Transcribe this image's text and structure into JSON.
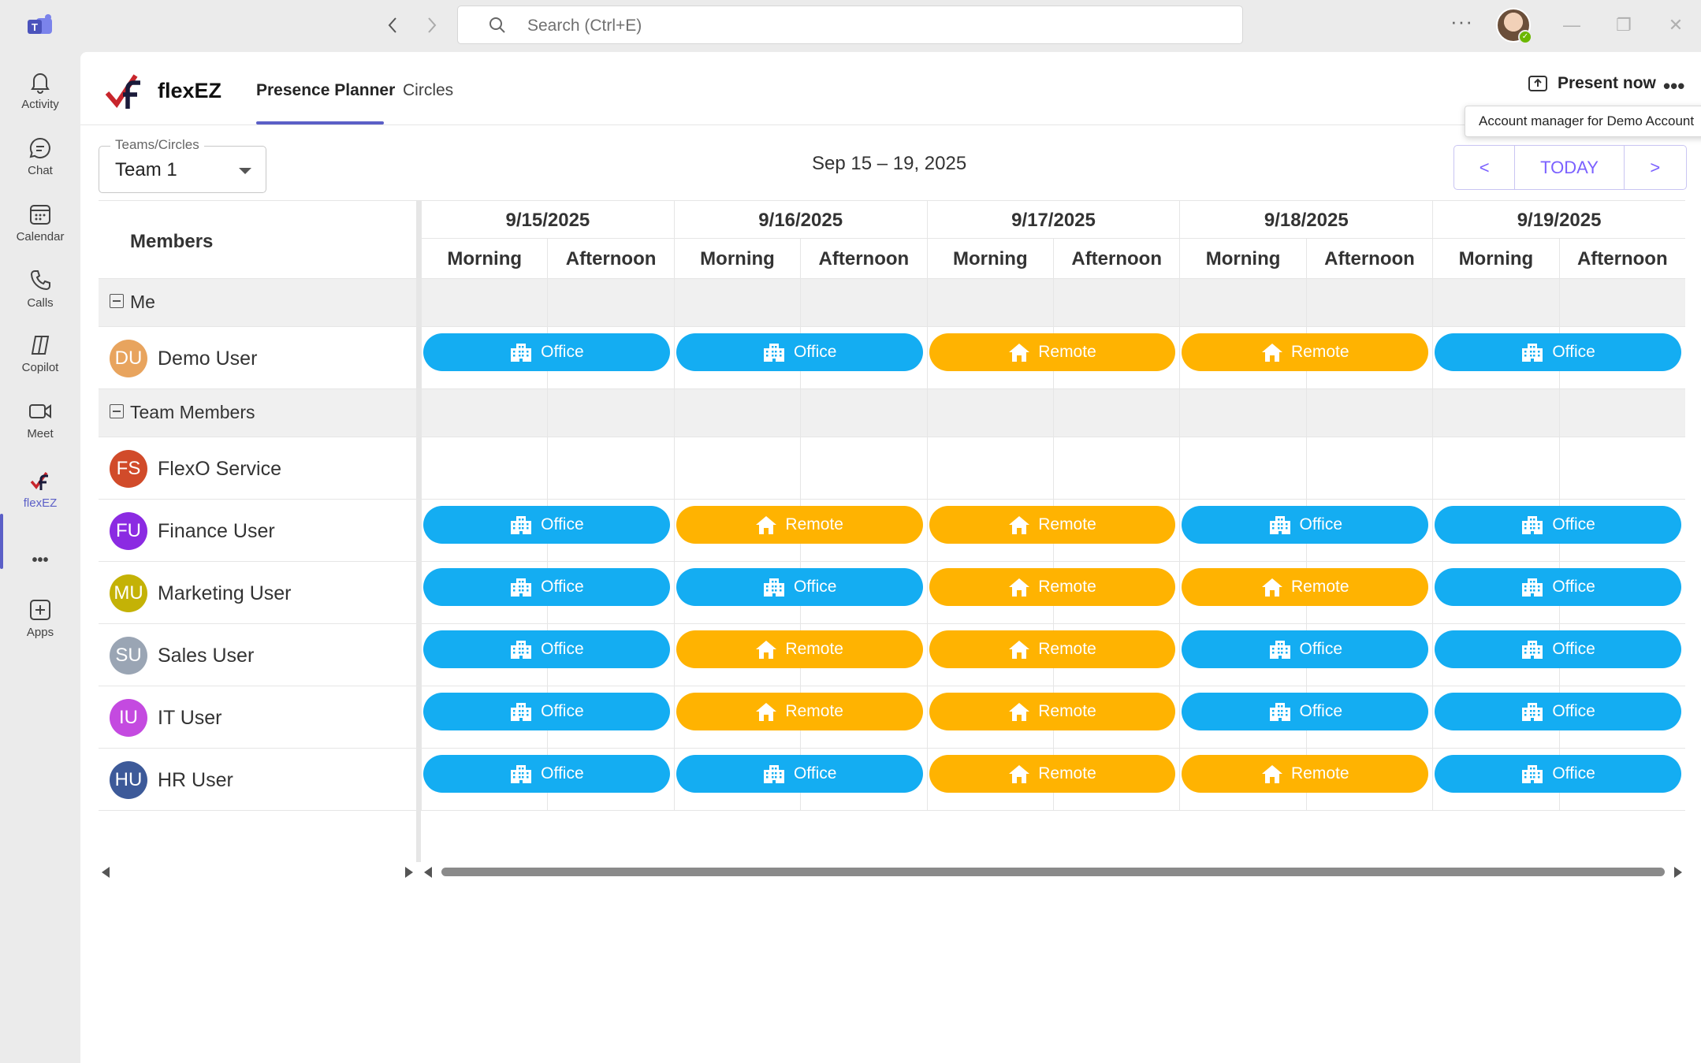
{
  "titlebar": {
    "search_placeholder": "Search (Ctrl+E)",
    "more": "···",
    "minimize": "—",
    "restore": "❐",
    "close": "✕"
  },
  "rail": {
    "items": [
      {
        "label": "Activity",
        "icon": "bell-icon"
      },
      {
        "label": "Chat",
        "icon": "chat-icon"
      },
      {
        "label": "Calendar",
        "icon": "calendar-icon"
      },
      {
        "label": "Calls",
        "icon": "phone-icon"
      },
      {
        "label": "Copilot",
        "icon": "copilot-icon"
      },
      {
        "label": "Meet",
        "icon": "video-icon"
      },
      {
        "label": "flexEZ",
        "icon": "flexez-icon"
      },
      {
        "label": "",
        "icon": "more-icon"
      },
      {
        "label": "Apps",
        "icon": "add-apps-icon"
      }
    ],
    "more_label": "•••",
    "accent": "#5b5fc7"
  },
  "app": {
    "name": "flexEZ",
    "tabs": [
      "Presence Planner",
      "Circles"
    ],
    "present_now": "Present now",
    "more": "•••",
    "tooltip": "Account manager for Demo Account"
  },
  "filter": {
    "legend": "Teams/Circles",
    "value": "Team 1"
  },
  "date_range": "Sep 15 – 19, 2025",
  "nav": {
    "prev": "<",
    "today": "TODAY",
    "next": ">"
  },
  "grid": {
    "members_header": "Members",
    "days": [
      "9/15/2025",
      "9/16/2025",
      "9/17/2025",
      "9/18/2025",
      "9/19/2025"
    ],
    "halves": [
      "Morning",
      "Afternoon"
    ],
    "status_labels": {
      "office": "Office",
      "remote": "Remote"
    },
    "colors": {
      "office": "#14adf2",
      "remote": "#ffb301"
    },
    "rows": [
      {
        "type": "group",
        "label": "Me"
      },
      {
        "type": "member",
        "initials": "DU",
        "name": "Demo User",
        "color": "#e8a45e",
        "statuses": [
          "office",
          "office",
          "remote",
          "remote",
          "office"
        ]
      },
      {
        "type": "group",
        "label": "Team Members"
      },
      {
        "type": "member",
        "initials": "FS",
        "name": "FlexO Service",
        "color": "#d14b2a",
        "statuses": [
          null,
          null,
          null,
          null,
          null
        ]
      },
      {
        "type": "member",
        "initials": "FU",
        "name": "Finance User",
        "color": "#8b2be2",
        "statuses": [
          "office",
          "remote",
          "remote",
          "office",
          "office"
        ]
      },
      {
        "type": "member",
        "initials": "MU",
        "name": "Marketing User",
        "color": "#c4b206",
        "statuses": [
          "office",
          "office",
          "remote",
          "remote",
          "office"
        ]
      },
      {
        "type": "member",
        "initials": "SU",
        "name": "Sales User",
        "color": "#9aa5b4",
        "statuses": [
          "office",
          "remote",
          "remote",
          "office",
          "office"
        ]
      },
      {
        "type": "member",
        "initials": "IU",
        "name": "IT User",
        "color": "#c44ae0",
        "statuses": [
          "office",
          "remote",
          "remote",
          "office",
          "office"
        ]
      },
      {
        "type": "member",
        "initials": "HU",
        "name": "HR User",
        "color": "#3d5a99",
        "statuses": [
          "office",
          "office",
          "remote",
          "remote",
          "office"
        ]
      }
    ]
  }
}
